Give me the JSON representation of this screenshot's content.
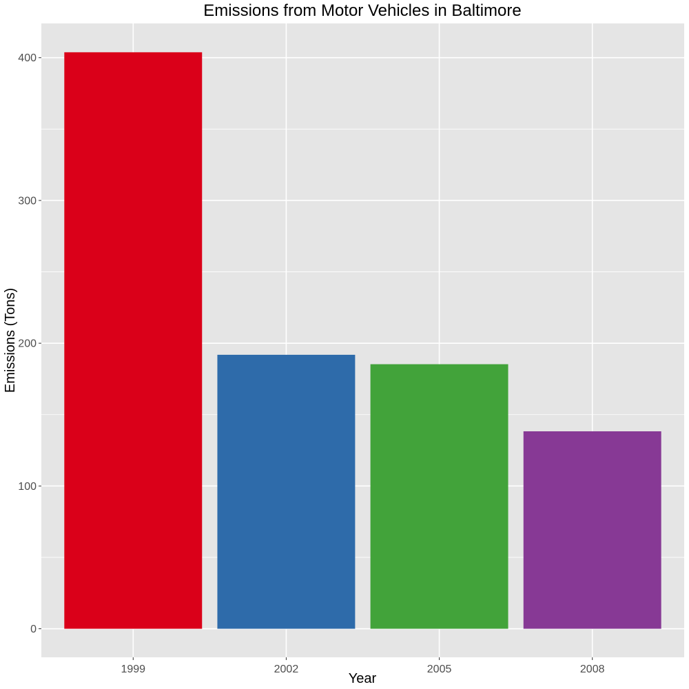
{
  "chart_data": {
    "type": "bar",
    "title": "Emissions from Motor Vehicles in Baltimore",
    "xlabel": "Year",
    "ylabel": "Emissions (Tons)",
    "categories": [
      "1999",
      "2002",
      "2005",
      "2008"
    ],
    "values": [
      403.8,
      191.9,
      185.3,
      138.3
    ],
    "colors": [
      "#DA0019",
      "#2E6BAA",
      "#42A33A",
      "#873995"
    ],
    "ylim": [
      -20,
      424
    ],
    "yticks": [
      0,
      100,
      200,
      300,
      400
    ],
    "ytick_labels": [
      "0",
      "100",
      "200",
      "300",
      "400"
    ],
    "grid": true,
    "panel_background": "#E5E5E5",
    "grid_color": "#FFFFFF"
  }
}
